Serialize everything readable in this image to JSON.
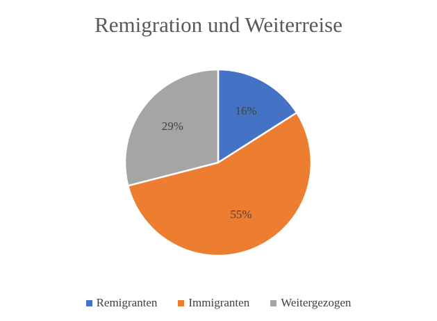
{
  "chart_data": {
    "type": "pie",
    "title": "Remigration und Weiterreise",
    "categories": [
      "Remigranten",
      "Immigranten",
      "Weitergezogen"
    ],
    "values": [
      16,
      55,
      29
    ],
    "data_labels": [
      "16%",
      "55%",
      "29%"
    ],
    "colors": [
      "#4472C4",
      "#ED7D31",
      "#A5A5A5"
    ],
    "legend_position": "bottom",
    "start_angle_degrees": 0,
    "direction": "clockwise"
  }
}
